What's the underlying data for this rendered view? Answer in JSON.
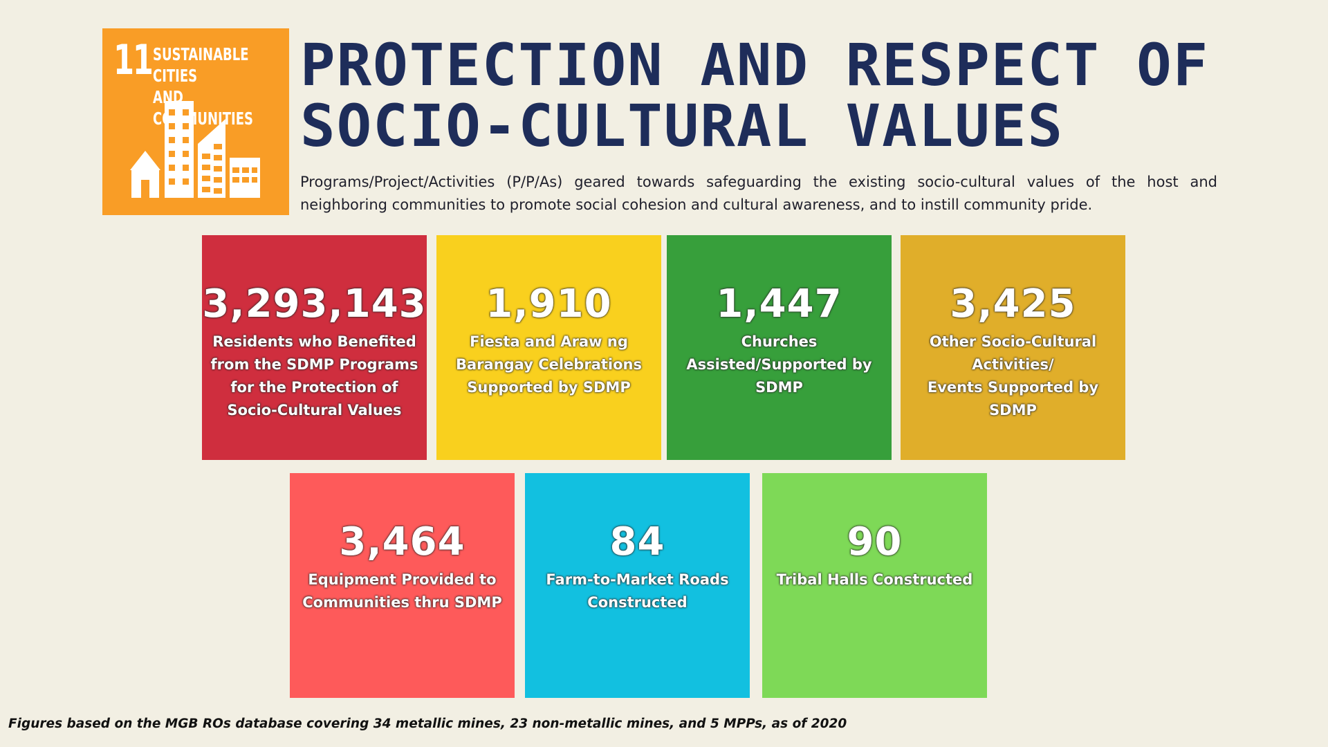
{
  "badge": {
    "number": "11",
    "line1": "SUSTAINABLE CITIES",
    "line2": "AND COMMUNITIES",
    "icon": "city-buildings-icon",
    "color": "#f99d26"
  },
  "title": {
    "line1": "PROTECTION AND RESPECT OF",
    "line2": "SOCIO-CULTURAL VALUES"
  },
  "description": "Programs/Project/Activities (P/P/As) geared towards safeguarding the existing socio-cultural values of the host and neighboring communities to promote social cohesion and cultural awareness, and to instill community pride.",
  "stats": [
    {
      "value": "3,293,143",
      "label": "Residents who Benefited\nfrom the SDMP Programs\nfor the Protection of\nSocio-Cultural Values",
      "color": "#cf2e3e"
    },
    {
      "value": "1,910",
      "label": "Fiesta and Araw ng\nBarangay Celebrations\nSupported by SDMP",
      "color": "#f9d01e"
    },
    {
      "value": "1,447",
      "label": "Churches\nAssisted/Supported by\nSDMP",
      "color": "#379f3b"
    },
    {
      "value": "3,425",
      "label": "Other Socio-Cultural\nActivities/\nEvents Supported by\nSDMP",
      "color": "#e0ae2a"
    },
    {
      "value": "3,464",
      "label": "Equipment Provided to\nCommunities thru SDMP",
      "color": "#fe5a5a"
    },
    {
      "value": "84",
      "label": "Farm-to-Market Roads\nConstructed",
      "color": "#12c0e0"
    },
    {
      "value": "90",
      "label": "Tribal Halls Constructed",
      "color": "#7ed957"
    }
  ],
  "footnote": "Figures based on the MGB ROs database covering 34 metallic mines, 23 non-metallic mines, and 5 MPPs, as of 2020"
}
